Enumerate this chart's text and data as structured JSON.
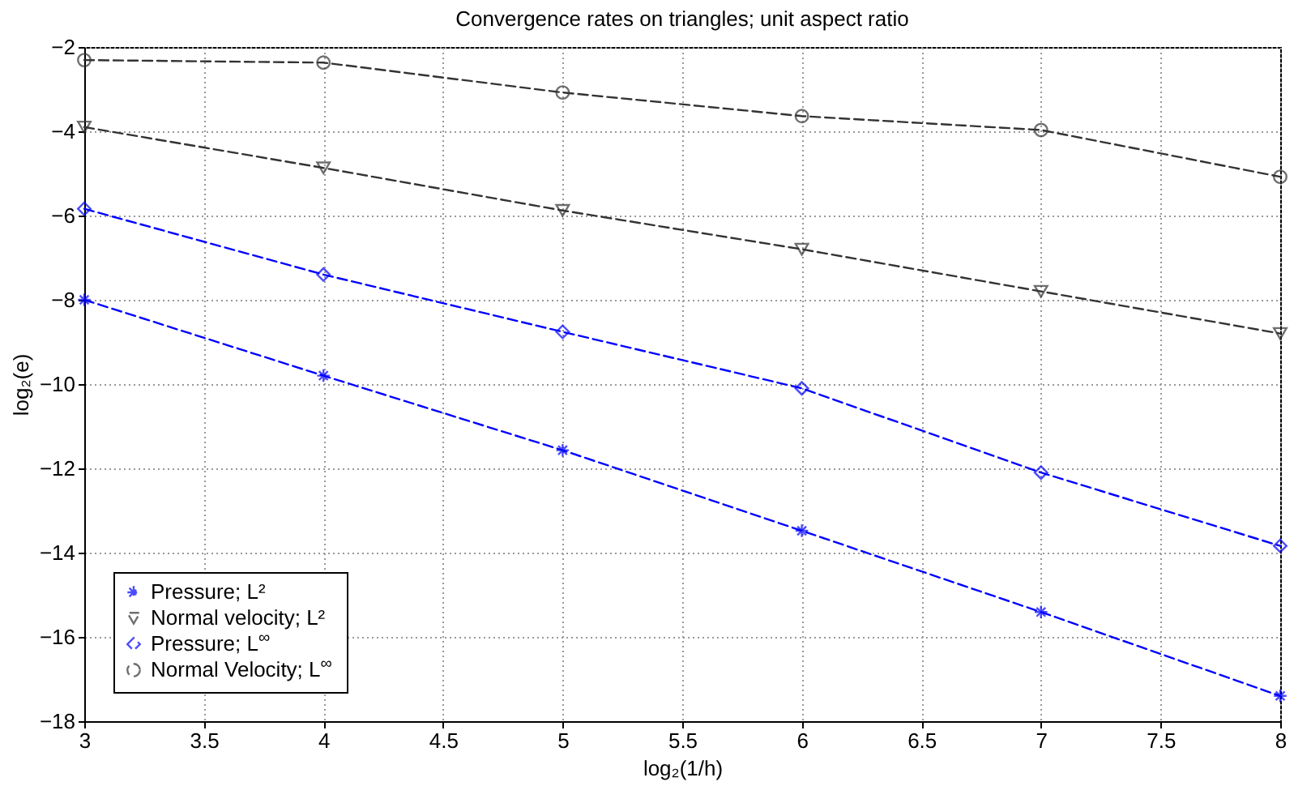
{
  "chart_data": {
    "type": "line",
    "title": "Convergence rates on triangles; unit aspect ratio",
    "xlabel": "log₂(1/h)",
    "ylabel": "log₂(e)",
    "x": [
      3,
      4,
      5,
      6,
      7,
      8
    ],
    "series": [
      {
        "name": "Pressure; L²",
        "color": "#0000ff",
        "marker": "cross",
        "line_style": "dashed",
        "values": [
          -8.0,
          -9.8,
          -11.57,
          -13.48,
          -15.41,
          -17.4
        ]
      },
      {
        "name": "Normal velocity; L²",
        "color": "#333333",
        "marker": "triangle",
        "line_style": "dashed",
        "values": [
          -3.9,
          -4.87,
          -5.88,
          -6.8,
          -7.8,
          -8.8
        ]
      },
      {
        "name": "Pressure; L$^{∞}$",
        "color": "#0000ff",
        "marker": "diamond",
        "line_style": "dashed",
        "values": [
          -5.84,
          -7.4,
          -8.76,
          -10.1,
          -12.1,
          -13.84
        ]
      },
      {
        "name": "Normal Velocity; L$^{∞}$",
        "color": "#333333",
        "marker": "circle",
        "line_style": "dashed",
        "values": [
          -2.31,
          -2.37,
          -3.08,
          -3.64,
          -3.97,
          -5.08
        ]
      }
    ],
    "xlim": [
      3,
      8
    ],
    "xticks": [
      3,
      3.5,
      4,
      4.5,
      5,
      5.5,
      6,
      6.5,
      7,
      7.5,
      8
    ],
    "ylim": [
      -18,
      -2
    ],
    "yticks": [
      -18,
      -16,
      -14,
      -12,
      -10,
      -8,
      -6,
      -4,
      -2
    ],
    "grid": true,
    "legend": "bottom left"
  }
}
